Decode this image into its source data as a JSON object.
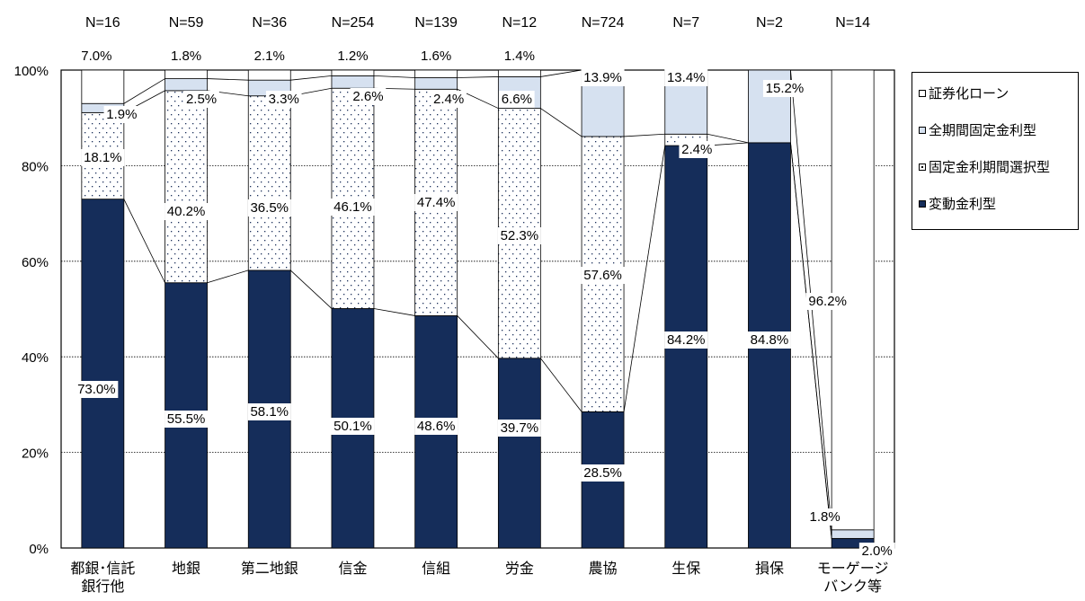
{
  "chart_data": {
    "type": "bar",
    "stacked": true,
    "categories": [
      [
        "都銀･信託",
        "銀行他"
      ],
      [
        "地銀"
      ],
      [
        "第二地銀"
      ],
      [
        "信金"
      ],
      [
        "信組"
      ],
      [
        "労金"
      ],
      [
        "農協"
      ],
      [
        "生保"
      ],
      [
        "損保"
      ],
      [
        "モーゲージ",
        "バンク等"
      ]
    ],
    "n_labels": [
      "N=16",
      "N=59",
      "N=36",
      "N=254",
      "N=139",
      "N=12",
      "N=724",
      "N=7",
      "N=2",
      "N=14"
    ],
    "series": [
      {
        "name": "変動金利型",
        "values": [
          73.0,
          55.5,
          58.1,
          50.1,
          48.6,
          39.7,
          28.5,
          84.2,
          84.8,
          2.0
        ],
        "labels": [
          "73.0%",
          "55.5%",
          "58.1%",
          "50.1%",
          "48.6%",
          "39.7%",
          "28.5%",
          "84.2%",
          "84.8%",
          "2.0%"
        ],
        "color": "#152d5a"
      },
      {
        "name": "固定金利期間選択型",
        "values": [
          18.1,
          40.2,
          36.5,
          46.1,
          47.4,
          52.3,
          57.6,
          2.4,
          0,
          0
        ],
        "labels": [
          "18.1%",
          "40.2%",
          "36.5%",
          "46.1%",
          "47.4%",
          "52.3%",
          "57.6%",
          "2.4%",
          "",
          ""
        ],
        "color": "#ffffff"
      },
      {
        "name": "全期間固定金利型",
        "values": [
          1.9,
          2.5,
          3.3,
          2.6,
          2.4,
          6.6,
          13.9,
          13.4,
          15.2,
          1.8
        ],
        "labels": [
          "1.9%",
          "2.5%",
          "3.3%",
          "2.6%",
          "2.4%",
          "6.6%",
          "13.9%",
          "13.4%",
          "15.2%",
          "1.8%"
        ],
        "color": "#d6e1f0"
      },
      {
        "name": "証券化ローン",
        "values": [
          7.0,
          1.8,
          2.1,
          1.2,
          1.6,
          1.4,
          0,
          0,
          0,
          96.2
        ],
        "labels": [
          "7.0%",
          "1.8%",
          "2.1%",
          "1.2%",
          "1.6%",
          "1.4%",
          "",
          "",
          "",
          "96.2%"
        ],
        "color": "#ffffff"
      }
    ],
    "yticks": [
      "0%",
      "20%",
      "40%",
      "60%",
      "80%",
      "100%"
    ],
    "ylim": [
      0,
      100
    ],
    "legend_position": "right",
    "grid": true
  },
  "legend": [
    {
      "label": "証券化ローン",
      "color": "#ffffff"
    },
    {
      "label": "全期間固定金利型",
      "color": "#d6e1f0"
    },
    {
      "label": "固定金利期間選択型",
      "color": "#ffffff",
      "dotted": true
    },
    {
      "label": "変動金利型",
      "color": "#152d5a"
    }
  ]
}
